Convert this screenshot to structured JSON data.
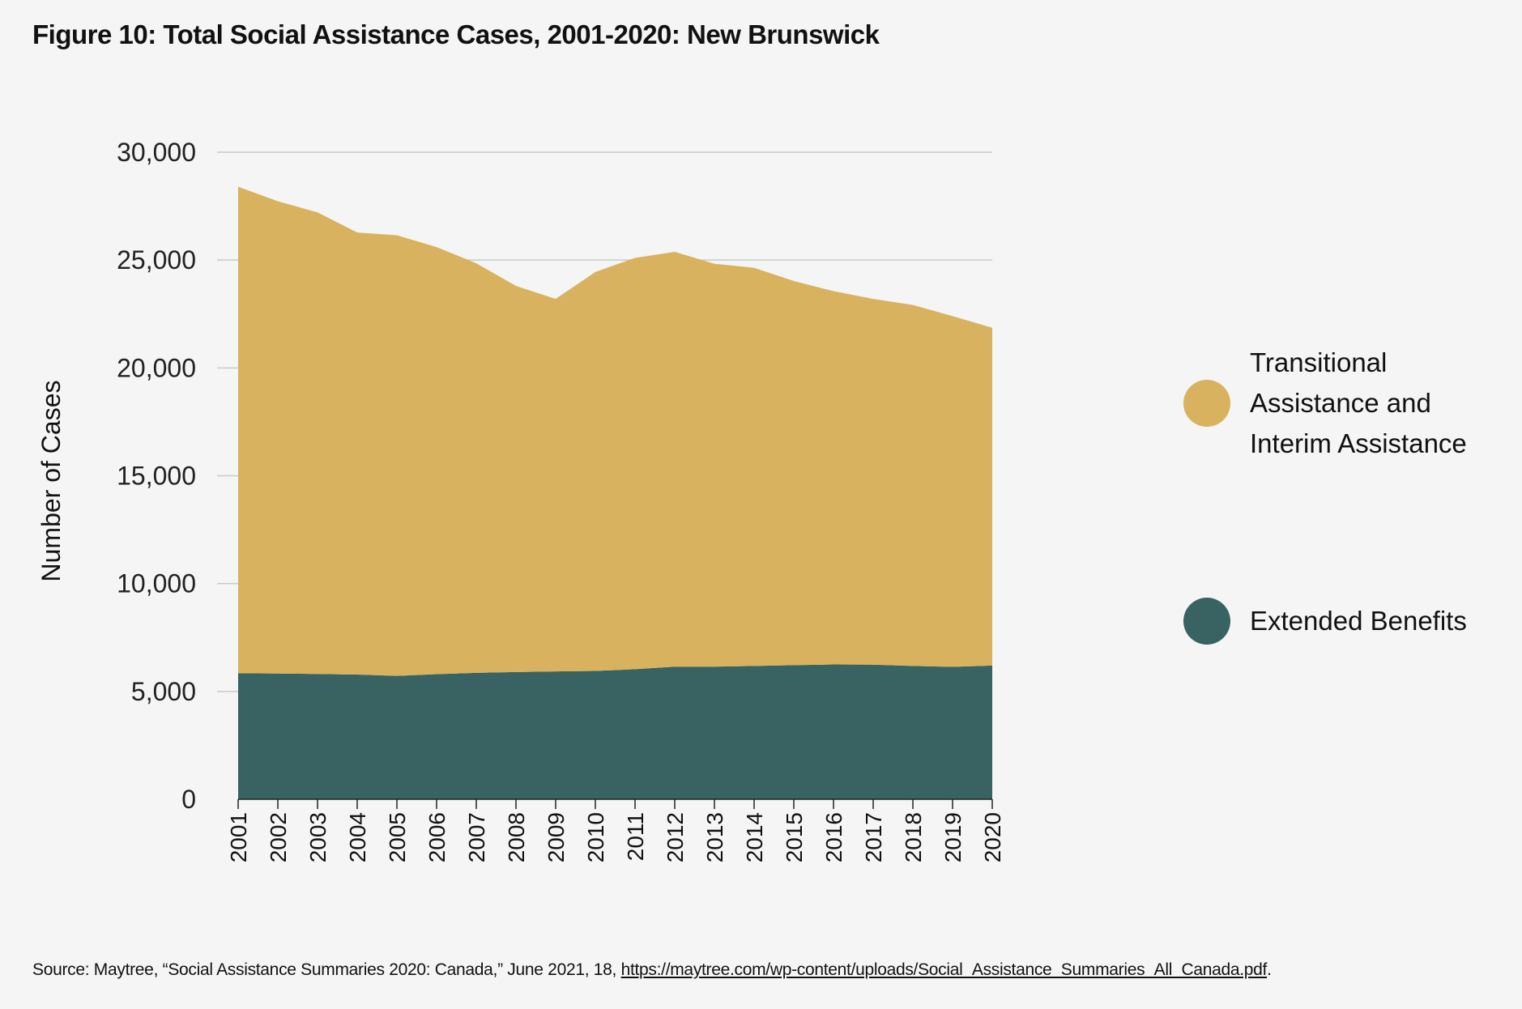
{
  "title": "Figure 10: Total Social Assistance Cases, 2001-2020: New Brunswick",
  "source": {
    "prefix": "Source: Maytree, “Social Assistance Summaries 2020: Canada,” June 2021, 18, ",
    "link": "https://maytree.com/wp-content/uploads/Social_Assistance_Summaries_All_Canada.pdf",
    "suffix": "."
  },
  "chart_data": {
    "type": "area",
    "stacked": true,
    "title": "Figure 10: Total Social Assistance Cases, 2001-2020: New Brunswick",
    "xlabel": "",
    "ylabel": "Number of Cases",
    "ylim": [
      0,
      30000
    ],
    "yticks": [
      0,
      5000,
      10000,
      15000,
      20000,
      25000,
      30000
    ],
    "ytick_labels": [
      "0",
      "5,000",
      "10,000",
      "15,000",
      "20,000",
      "25,000",
      "30,000"
    ],
    "grid": "horizontal",
    "legend_position": "right",
    "x": [
      "2001",
      "2002",
      "2003",
      "2004",
      "2005",
      "2006",
      "2007",
      "2008",
      "2009",
      "2010",
      "2011",
      "2012",
      "2013",
      "2014",
      "2015",
      "2016",
      "2017",
      "2018",
      "2019",
      "2020"
    ],
    "series": [
      {
        "name": "Extended Benefits",
        "color": "#386362",
        "values": [
          5850,
          5830,
          5810,
          5780,
          5720,
          5800,
          5860,
          5900,
          5930,
          5950,
          6030,
          6150,
          6150,
          6180,
          6220,
          6250,
          6240,
          6180,
          6140,
          6200
        ]
      },
      {
        "name": "Transitional Assistance and Interim Assistance",
        "color": "#d8b25e",
        "values": [
          22550,
          21900,
          21400,
          20500,
          20430,
          19800,
          18990,
          17900,
          17270,
          18500,
          19070,
          19230,
          18680,
          18460,
          17810,
          17310,
          16960,
          16740,
          16260,
          15660
        ]
      }
    ]
  },
  "legend": [
    {
      "label_lines": [
        "Transitional",
        "Assistance and",
        "Interim Assistance"
      ],
      "color": "#d8b25e"
    },
    {
      "label_lines": [
        "Extended Benefits"
      ],
      "color": "#386362"
    }
  ]
}
